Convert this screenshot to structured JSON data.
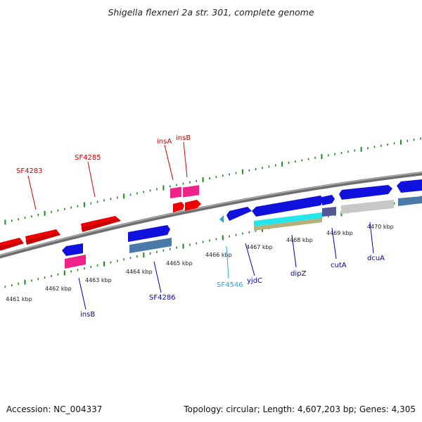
{
  "title": "Shigella flexneri 2a str. 301, complete genome",
  "footer": {
    "accession": "Accession: NC_004337",
    "summary": "Topology: circular; Length: 4,607,203 bp; Genes: 4,305"
  },
  "colors": {
    "backbone": "#808080",
    "forward_ticks": "#1e8a1e",
    "reverse_ticks": "#1e8a1e",
    "label_red": "#cc0000",
    "label_blue": "#0000aa",
    "label_cyan": "#22aadd"
  },
  "axis_ticks": [
    {
      "label": "4461 kbp"
    },
    {
      "label": "4462 kbp"
    },
    {
      "label": "4463 kbp"
    },
    {
      "label": "4464 kbp"
    },
    {
      "label": "4465 kbp"
    },
    {
      "label": "4466 kbp"
    },
    {
      "label": "4467 kbp"
    },
    {
      "label": "4468 kbp"
    },
    {
      "label": "4469 kbp"
    },
    {
      "label": "4470 kbp"
    }
  ],
  "gene_labels": [
    {
      "name": "SF4283",
      "color": "#cc0000"
    },
    {
      "name": "SF4285",
      "color": "#cc0000"
    },
    {
      "name": "insA",
      "color": "#cc0000"
    },
    {
      "name": "insB",
      "color": "#cc0000"
    },
    {
      "name": "insB",
      "color": "#0000aa"
    },
    {
      "name": "SF4286",
      "color": "#0000aa"
    },
    {
      "name": "SF4546",
      "color": "#22aadd"
    },
    {
      "name": "yjdC",
      "color": "#0000aa"
    },
    {
      "name": "dipZ",
      "color": "#0000aa"
    },
    {
      "name": "cutA",
      "color": "#0000aa"
    },
    {
      "name": "dcuA",
      "color": "#0000aa"
    }
  ]
}
